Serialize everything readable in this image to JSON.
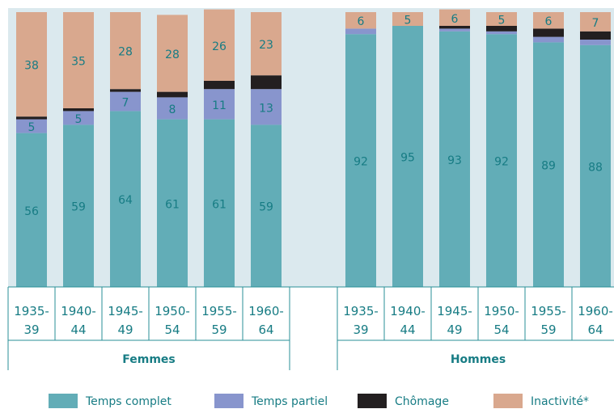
{
  "chart_data": {
    "type": "bar",
    "stacked": true,
    "ylim": [
      0,
      100
    ],
    "groups": [
      {
        "label": "Femmes",
        "categories": [
          "1935-\n39",
          "1940-\n44",
          "1945-\n49",
          "1950-\n54",
          "1955-\n59",
          "1960-\n64"
        ]
      },
      {
        "label": "Hommes",
        "categories": [
          "1935-\n39",
          "1940-\n44",
          "1945-\n49",
          "1950-\n54",
          "1955-\n59",
          "1960-\n64"
        ]
      }
    ],
    "series": [
      {
        "name": "Temps complet",
        "color": "#62adb7",
        "values": [
          56,
          59,
          64,
          61,
          61,
          59,
          92,
          95,
          93,
          92,
          89,
          88
        ],
        "value_labels": [
          "56",
          "59",
          "64",
          "61",
          "61",
          "59",
          "92",
          "95",
          "93",
          "92",
          "89",
          "88"
        ]
      },
      {
        "name": "Temps partiel",
        "color": "#8895cd",
        "values": [
          5,
          5,
          7,
          8,
          11,
          13,
          2,
          0,
          1,
          1,
          2,
          2
        ],
        "value_labels": [
          "5",
          "5",
          "7",
          "8",
          "11",
          "13",
          null,
          null,
          null,
          null,
          null,
          null
        ]
      },
      {
        "name": "Chômage",
        "color": "#231f20",
        "values": [
          1,
          1,
          1,
          2,
          3,
          5,
          0,
          0,
          1,
          2,
          3,
          3
        ],
        "value_labels": [
          null,
          null,
          null,
          null,
          null,
          null,
          null,
          null,
          null,
          null,
          null,
          null
        ]
      },
      {
        "name": "Inactivité*",
        "color": "#d9a88e",
        "values": [
          38,
          35,
          28,
          28,
          26,
          23,
          6,
          5,
          6,
          5,
          6,
          7
        ],
        "value_labels": [
          "38",
          "35",
          "28",
          "28",
          "26",
          "23",
          "6",
          "5",
          "6",
          "5",
          "6",
          "7"
        ]
      }
    ]
  }
}
